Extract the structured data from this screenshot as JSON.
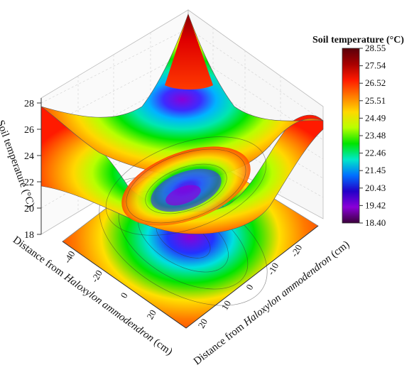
{
  "chart_data": {
    "type": "surface3d",
    "z_axis": {
      "label": "Soil temperature (°C)",
      "ticks": [
        "18",
        "20",
        "22",
        "24",
        "26",
        "28"
      ],
      "range": [
        18,
        28.55
      ]
    },
    "x_axis": {
      "label_prefix": "Distance from ",
      "label_italic": "Haloxylon ammodendron",
      "label_suffix": " (cm)",
      "ticks": [
        "-40",
        "-20",
        "0",
        "20"
      ]
    },
    "y_axis": {
      "label_prefix": "Distance from ",
      "label_italic": "Haloxylon ammodendron",
      "label_suffix": " (cm)",
      "ticks": [
        "-20",
        "-10",
        "0",
        "10",
        "20"
      ]
    },
    "colorbar": {
      "title": "Soil temperature (°C)",
      "min": 18.4,
      "max": 28.55,
      "labels": [
        "28.55",
        "27.54",
        "26.52",
        "25.51",
        "24.49",
        "23.48",
        "22.46",
        "21.45",
        "20.43",
        "19.42",
        "18.40"
      ],
      "colors": [
        "#5a000a",
        "#a80000",
        "#ff1a00",
        "#ff7a00",
        "#ffd800",
        "#b8ff00",
        "#00e400",
        "#00e8c8",
        "#0070ff",
        "#2200c8",
        "#8a00d8",
        "#3a003a"
      ]
    },
    "grid": true,
    "surface_summary": {
      "minimum_near": [
        0,
        0
      ],
      "minimum_value": 18.4,
      "maximum_corner_value": 28.55,
      "shape": "bowl / saddle surface with projected contour map on floor"
    }
  }
}
